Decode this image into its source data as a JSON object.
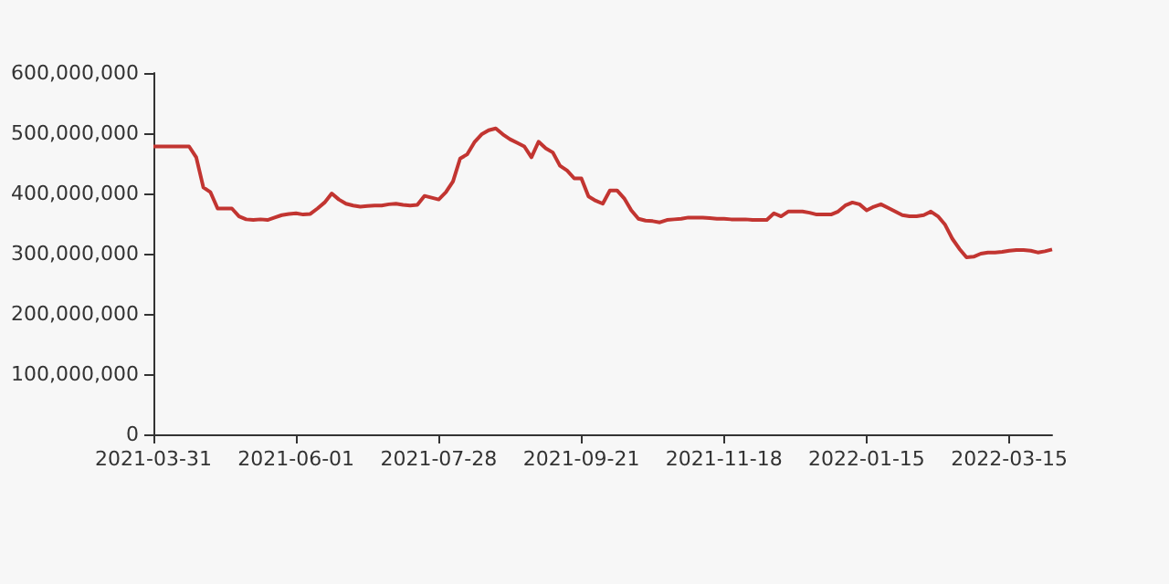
{
  "chart_data": {
    "type": "line",
    "categories": [
      "2021-03-31",
      null,
      null,
      null,
      null,
      null,
      null,
      null,
      null,
      null,
      null,
      null,
      null,
      null,
      null,
      null,
      null,
      null,
      null,
      null,
      "2021-06-01",
      null,
      null,
      null,
      null,
      null,
      null,
      null,
      null,
      null,
      null,
      null,
      null,
      null,
      null,
      null,
      null,
      null,
      null,
      null,
      "2021-07-28",
      null,
      null,
      null,
      null,
      null,
      null,
      null,
      null,
      null,
      null,
      null,
      null,
      null,
      null,
      null,
      null,
      null,
      null,
      null,
      "2021-09-21",
      null,
      null,
      null,
      null,
      null,
      null,
      null,
      null,
      null,
      null,
      null,
      null,
      null,
      null,
      null,
      null,
      null,
      null,
      null,
      "2021-11-18",
      null,
      null,
      null,
      null,
      null,
      null,
      null,
      null,
      null,
      null,
      null,
      null,
      null,
      null,
      null,
      null,
      null,
      null,
      null,
      "2022-01-15",
      null,
      null,
      null,
      null,
      null,
      null,
      null,
      null,
      null,
      null,
      null,
      null,
      null,
      null,
      null,
      null,
      null,
      null,
      null,
      "2022-03-15",
      null,
      null,
      null,
      null,
      null,
      null
    ],
    "series": [
      {
        "color": "#c23531",
        "values": [
          478000000,
          478000000,
          478000000,
          478000000,
          478000000,
          478000000,
          460000000,
          410000000,
          402000000,
          375000000,
          375000000,
          375000000,
          362000000,
          357000000,
          356000000,
          357000000,
          356000000,
          360000000,
          364000000,
          366000000,
          367000000,
          365000000,
          366000000,
          375000000,
          385000000,
          400000000,
          390000000,
          383000000,
          380000000,
          378000000,
          379000000,
          380000000,
          380000000,
          382000000,
          383000000,
          381000000,
          380000000,
          381000000,
          396000000,
          393000000,
          390000000,
          402000000,
          420000000,
          458000000,
          465000000,
          485000000,
          498000000,
          505000000,
          508000000,
          498000000,
          490000000,
          484000000,
          478000000,
          460000000,
          486000000,
          475000000,
          468000000,
          446000000,
          438000000,
          425000000,
          425000000,
          395000000,
          388000000,
          383000000,
          405000000,
          405000000,
          392000000,
          372000000,
          358000000,
          355000000,
          354000000,
          352000000,
          356000000,
          357000000,
          358000000,
          360000000,
          360000000,
          360000000,
          359000000,
          358000000,
          358000000,
          357000000,
          357000000,
          357000000,
          356000000,
          356000000,
          356000000,
          367000000,
          362000000,
          370000000,
          370000000,
          370000000,
          368000000,
          365000000,
          365000000,
          365000000,
          370000000,
          380000000,
          385000000,
          382000000,
          372000000,
          378000000,
          382000000,
          376000000,
          370000000,
          364000000,
          362000000,
          362000000,
          364000000,
          370000000,
          362000000,
          348000000,
          325000000,
          308000000,
          294000000,
          295000000,
          300000000,
          302000000,
          302000000,
          303000000,
          305000000,
          306000000,
          306000000,
          305000000,
          302000000,
          304000000,
          307000000
        ]
      }
    ],
    "ylim": [
      0,
      600000000
    ],
    "yticks": [
      0,
      {
        "value": 100000000,
        "label": "100,000,000"
      },
      {
        "value": 200000000,
        "label": "200,000,000"
      },
      {
        "value": 300000000,
        "label": "300,000,000"
      },
      {
        "value": 400000000,
        "label": "400,000,000"
      },
      {
        "value": 500000000,
        "label": "500,000,000"
      },
      {
        "value": 600000000,
        "label": "600,000,000"
      }
    ],
    "grid": false
  }
}
